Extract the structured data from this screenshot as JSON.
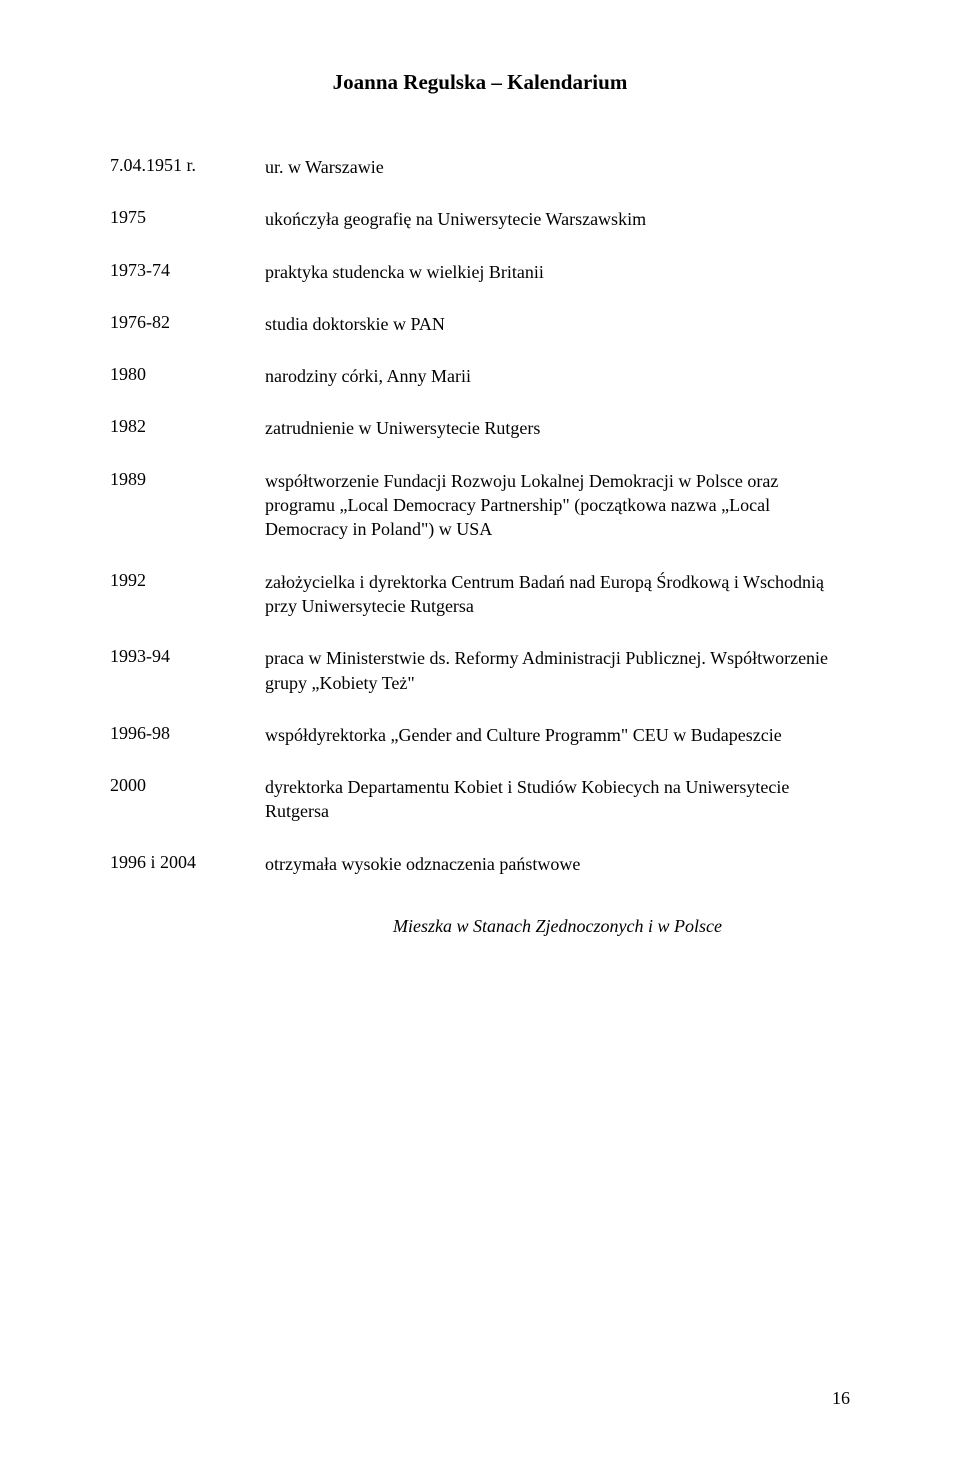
{
  "title": "Joanna Regulska – Kalendarium",
  "timeline": [
    {
      "year": "7.04.1951 r.",
      "desc": "ur. w Warszawie"
    },
    {
      "year": "1975",
      "desc": "ukończyła geografię na Uniwersytecie Warszawskim"
    },
    {
      "year": "1973-74",
      "desc": "praktyka studencka w wielkiej Britanii"
    },
    {
      "year": "1976-82",
      "desc": "studia doktorskie w PAN"
    },
    {
      "year": "1980",
      "desc": "narodziny córki, Anny Marii"
    },
    {
      "year": "1982",
      "desc": "zatrudnienie w Uniwersytecie Rutgers"
    },
    {
      "year": "1989",
      "desc": "współtworzenie Fundacji Rozwoju Lokalnej Demokracji w Polsce oraz programu „Local Democracy Partnership\" (początkowa nazwa „Local Democracy in Poland\") w USA"
    },
    {
      "year": "1992",
      "desc": "założycielka i dyrektorka Centrum Badań nad Europą Środkową i Wschodnią przy Uniwersytecie Rutgersa"
    },
    {
      "year": "1993-94",
      "desc": "praca w Ministerstwie ds. Reformy Administracji Publicznej. Współtworzenie grupy „Kobiety Też\""
    },
    {
      "year": "1996-98",
      "desc": "współdyrektorka „Gender and Culture Programm\" CEU w Budapeszcie"
    },
    {
      "year": "2000",
      "desc": "dyrektorka Departamentu Kobiet i Studiów Kobiecych na Uniwersytecie Rutgersa"
    },
    {
      "year": "1996 i 2004",
      "desc": "otrzymała wysokie odznaczenia państwowe"
    }
  ],
  "footer_note": "Mieszka w Stanach Zjednoczonych i w Polsce",
  "page_number": "16"
}
